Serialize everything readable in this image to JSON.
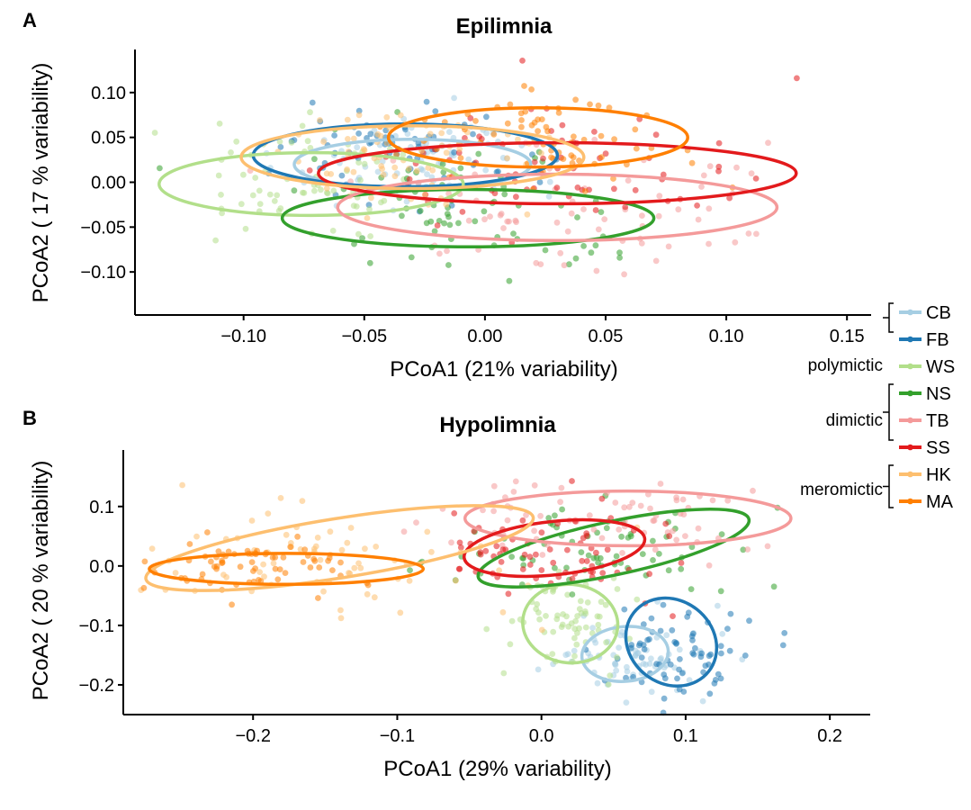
{
  "figure": {
    "colors": {
      "CB": "#a6cee3",
      "FB": "#1f78b4",
      "WS": "#b2df8a",
      "NS": "#33a02c",
      "TB": "#f49a9a",
      "SS": "#e31a1c",
      "HK": "#fdbf6f",
      "MA": "#ff7f00"
    }
  },
  "legend": {
    "groups": [
      {
        "name": "polymictic",
        "items": [
          "CB",
          "FB",
          "WS"
        ]
      },
      {
        "name": "dimictic",
        "items": [
          "NS",
          "TB",
          "SS"
        ]
      },
      {
        "name": "meromictic",
        "items": [
          "HK",
          "MA"
        ]
      }
    ]
  },
  "chart_data": [
    {
      "panel": "A",
      "type": "scatter",
      "title": "Epilimnia",
      "xlabel": "PCoA1 (21% variability)",
      "ylabel": "PCoA2 ( 17 % variability)",
      "xlim": [
        -0.145,
        0.16
      ],
      "ylim": [
        -0.148,
        0.148
      ],
      "xticks": [
        -0.1,
        -0.05,
        0.0,
        0.05,
        0.1,
        0.15
      ],
      "xtick_labels": [
        "−0.10",
        "−0.05",
        "0.00",
        "0.05",
        "0.10",
        "0.15"
      ],
      "yticks": [
        0.1,
        0.05,
        0.0,
        -0.05,
        -0.1
      ],
      "ytick_labels": [
        "0.10",
        "0.05",
        "0.00",
        "−0.05",
        "−0.10"
      ],
      "series": [
        {
          "name": "CB",
          "centroid": [
            -0.03,
            0.02
          ],
          "sd": [
            0.028,
            0.03
          ],
          "ellipse": {
            "cx": -0.03,
            "cy": 0.02,
            "rx": 0.049,
            "ry": 0.028
          }
        },
        {
          "name": "FB",
          "centroid": [
            -0.033,
            0.03
          ],
          "sd": [
            0.024,
            0.03
          ],
          "ellipse": {
            "cx": -0.033,
            "cy": 0.03,
            "rx": 0.063,
            "ry": 0.035
          }
        },
        {
          "name": "WS",
          "centroid": [
            -0.072,
            -0.002
          ],
          "sd": [
            0.022,
            0.03
          ],
          "ellipse": {
            "cx": -0.072,
            "cy": -0.002,
            "rx": 0.063,
            "ry": 0.035
          }
        },
        {
          "name": "NS",
          "centroid": [
            -0.007,
            -0.04
          ],
          "sd": [
            0.032,
            0.038
          ],
          "ellipse": {
            "cx": -0.007,
            "cy": -0.04,
            "rx": 0.077,
            "ry": 0.032
          }
        },
        {
          "name": "TB",
          "centroid": [
            0.03,
            -0.028
          ],
          "sd": [
            0.04,
            0.035
          ],
          "ellipse": {
            "cx": 0.03,
            "cy": -0.028,
            "rx": 0.091,
            "ry": 0.037
          }
        },
        {
          "name": "SS",
          "centroid": [
            0.03,
            0.01
          ],
          "sd": [
            0.04,
            0.038
          ],
          "ellipse": {
            "cx": 0.03,
            "cy": 0.01,
            "rx": 0.099,
            "ry": 0.034
          }
        },
        {
          "name": "HK",
          "centroid": [
            -0.03,
            0.03
          ],
          "sd": [
            0.028,
            0.028
          ],
          "ellipse": {
            "cx": -0.03,
            "cy": 0.028,
            "rx": 0.071,
            "ry": 0.035
          }
        },
        {
          "name": "MA",
          "centroid": [
            0.022,
            0.05
          ],
          "sd": [
            0.03,
            0.03
          ],
          "ellipse": {
            "cx": 0.022,
            "cy": 0.05,
            "rx": 0.062,
            "ry": 0.033
          }
        }
      ]
    },
    {
      "panel": "B",
      "type": "scatter",
      "title": "Hypolimnia",
      "xlabel": "PCoA1 (29% variability)",
      "ylabel": "PCoA2 ( 20 % variability)",
      "xlim": [
        -0.29,
        0.228
      ],
      "ylim": [
        -0.25,
        0.195
      ],
      "xticks": [
        -0.2,
        -0.1,
        0.0,
        0.1,
        0.2
      ],
      "xtick_labels": [
        "−0.2",
        "−0.1",
        "0.0",
        "0.1",
        "0.2"
      ],
      "yticks": [
        0.1,
        0.0,
        -0.1,
        -0.2
      ],
      "ytick_labels": [
        "0.1",
        "0.0",
        "−0.1",
        "−0.2"
      ],
      "series": [
        {
          "name": "CB",
          "centroid": [
            0.06,
            -0.155
          ],
          "sd": [
            0.028,
            0.03
          ],
          "ellipse": {
            "cx": 0.058,
            "cy": -0.148,
            "rx": 0.03,
            "ry": 0.046,
            "rot": -5
          }
        },
        {
          "name": "FB",
          "centroid": [
            0.09,
            -0.145
          ],
          "sd": [
            0.025,
            0.035
          ],
          "ellipse": {
            "cx": 0.09,
            "cy": -0.128,
            "rx": 0.033,
            "ry": 0.07,
            "rot": 38
          }
        },
        {
          "name": "WS",
          "centroid": [
            0.02,
            -0.1
          ],
          "sd": [
            0.02,
            0.04
          ],
          "ellipse": {
            "cx": 0.02,
            "cy": -0.097,
            "rx": 0.033,
            "ry": 0.066,
            "rot": 5
          }
        },
        {
          "name": "NS",
          "centroid": [
            0.04,
            0.03
          ],
          "sd": [
            0.05,
            0.04
          ],
          "ellipse": {
            "cx": 0.05,
            "cy": 0.03,
            "rx": 0.096,
            "ry": 0.045,
            "rot": -12
          }
        },
        {
          "name": "TB",
          "centroid": [
            0.06,
            0.08
          ],
          "sd": [
            0.055,
            0.035
          ],
          "ellipse": {
            "cx": 0.06,
            "cy": 0.08,
            "rx": 0.113,
            "ry": 0.046,
            "rot": 0
          }
        },
        {
          "name": "SS",
          "centroid": [
            0.01,
            0.03
          ],
          "sd": [
            0.04,
            0.04
          ],
          "ellipse": {
            "cx": 0.009,
            "cy": 0.03,
            "rx": 0.063,
            "ry": 0.045,
            "rot": -6
          }
        },
        {
          "name": "HK",
          "centroid": [
            -0.15,
            0.02
          ],
          "sd": [
            0.07,
            0.05
          ],
          "ellipse": {
            "cx": -0.14,
            "cy": 0.03,
            "rx": 0.136,
            "ry": 0.05,
            "rot": -9
          }
        },
        {
          "name": "MA",
          "centroid": [
            -0.205,
            0.0
          ],
          "sd": [
            0.035,
            0.025
          ],
          "ellipse": {
            "cx": -0.177,
            "cy": -0.005,
            "rx": 0.095,
            "ry": 0.026,
            "rot": 0
          }
        }
      ]
    }
  ]
}
